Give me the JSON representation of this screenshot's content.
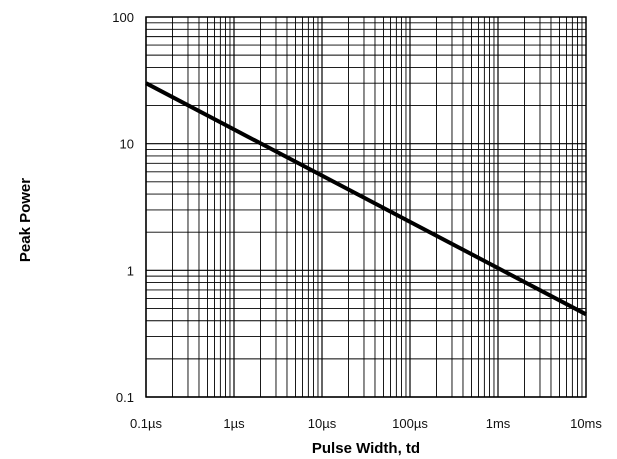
{
  "chart_data": {
    "type": "line",
    "title": "",
    "xlabel": "Pulse Width, td",
    "ylabel": "Peak Power",
    "x_scale": "log",
    "y_scale": "log",
    "xlim": [
      "0.1µs",
      "10ms"
    ],
    "ylim": [
      0.1,
      100
    ],
    "grid": true,
    "legend": "none",
    "x_ticks": [
      "0.1µs",
      "1µs",
      "10µs",
      "100µs",
      "1ms",
      "10ms"
    ],
    "y_ticks": [
      "0.1",
      "1",
      "10",
      "100"
    ],
    "series": [
      {
        "x": [
          "0.1µs",
          "10ms"
        ],
        "y": [
          30,
          0.45
        ]
      }
    ],
    "colors": {
      "line": "#000000",
      "grid": "#000000",
      "background": "#ffffff"
    }
  }
}
